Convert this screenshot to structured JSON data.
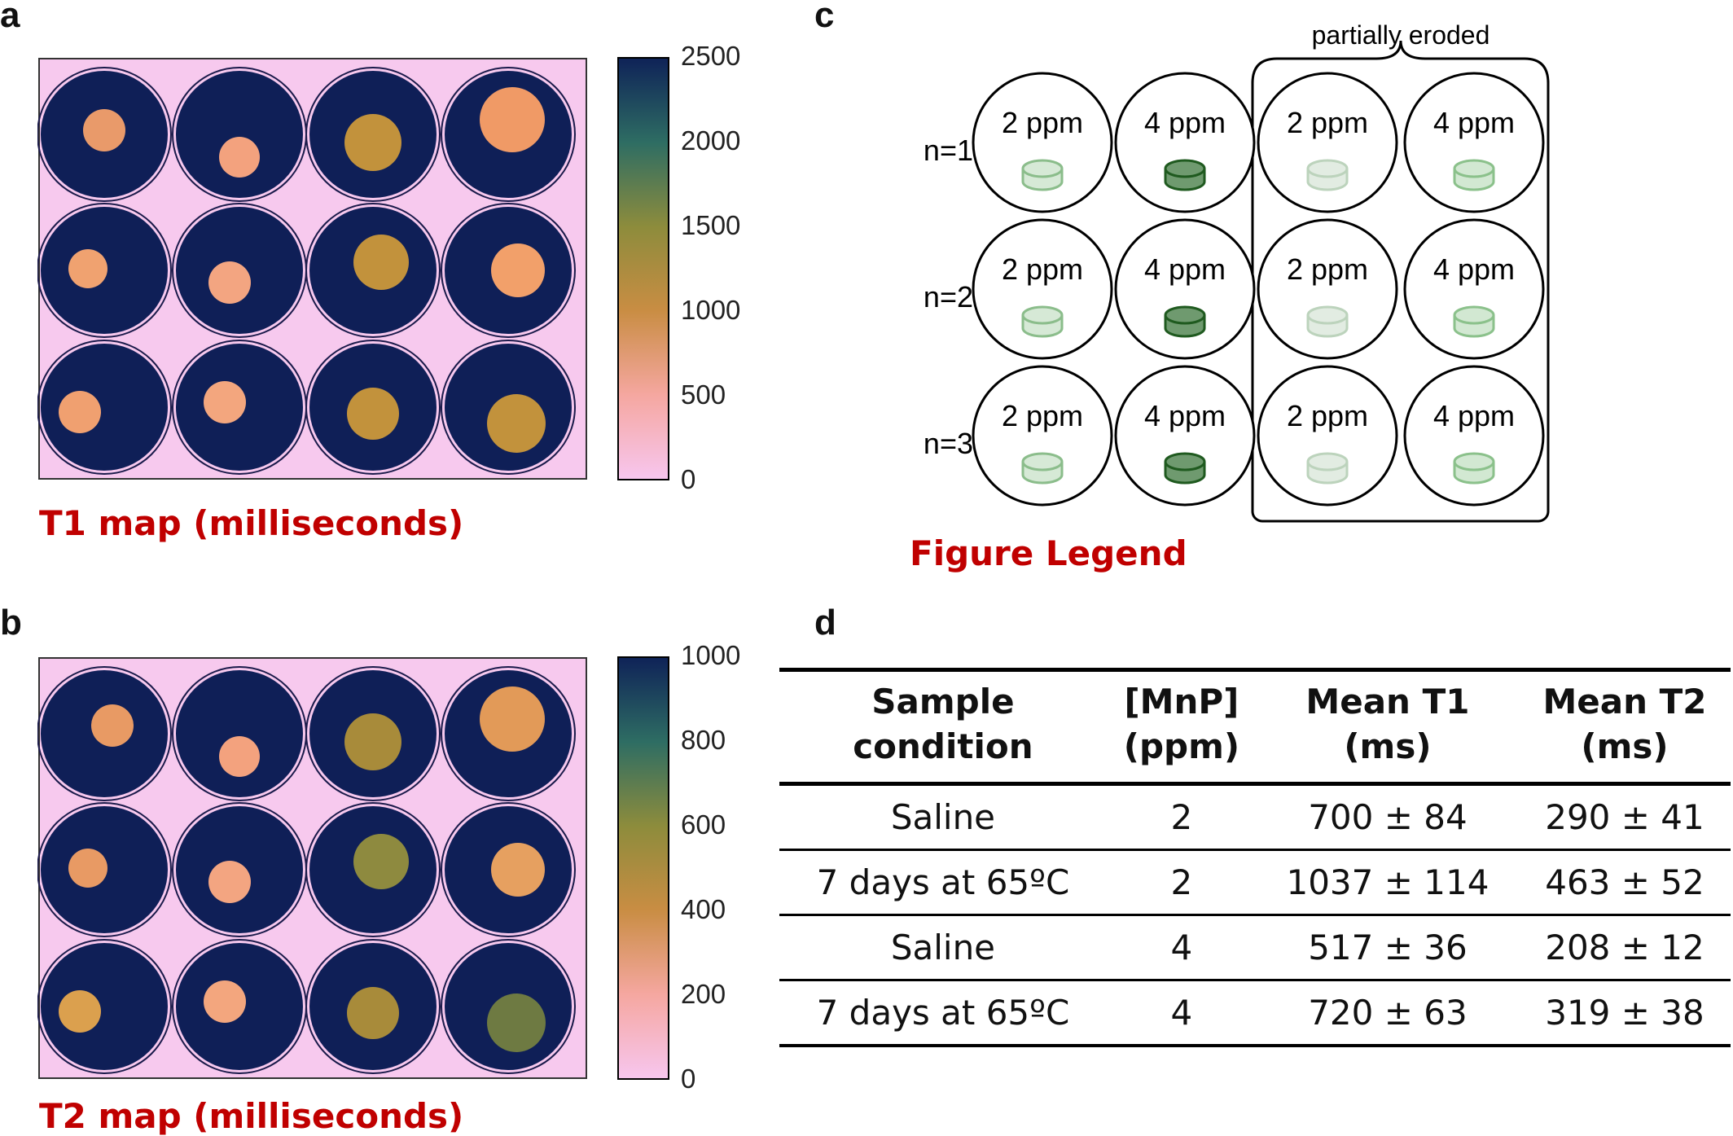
{
  "panels": {
    "a": {
      "letter": "a",
      "caption": "T1 map (milliseconds)",
      "colorbar_ticks": [
        "2500",
        "2000",
        "1500",
        "1000",
        "500",
        "0"
      ],
      "range": [
        0,
        2500
      ]
    },
    "b": {
      "letter": "b",
      "caption": "T2 map (milliseconds)",
      "colorbar_ticks": [
        "1000",
        "800",
        "600",
        "400",
        "200",
        "0"
      ],
      "range": [
        0,
        1000
      ]
    },
    "c": {
      "letter": "c",
      "caption": "Figure Legend",
      "bracket_label": "partially eroded",
      "rows": [
        {
          "label": "n=1",
          "wells": [
            "2 ppm",
            "4 ppm",
            "2 ppm",
            "4 ppm"
          ]
        },
        {
          "label": "n=2",
          "wells": [
            "2 ppm",
            "4 ppm",
            "2 ppm",
            "4 ppm"
          ]
        },
        {
          "label": "n=3",
          "wells": [
            "2 ppm",
            "4 ppm",
            "2 ppm",
            "4 ppm"
          ]
        }
      ],
      "disk_colors": [
        "#d6e9d6",
        "#6f9a6f",
        "#e2ece2",
        "#d2e8d2"
      ],
      "disk_stroke": [
        "#8bbd8b",
        "#1f5a1f",
        "#bcd3bc",
        "#8bc18b"
      ]
    },
    "d": {
      "letter": "d",
      "headers": [
        [
          "Sample",
          "condition"
        ],
        [
          "[MnP]",
          "(ppm)"
        ],
        [
          "Mean T1",
          "(ms)"
        ],
        [
          "Mean T2",
          "(ms)"
        ]
      ],
      "rows": [
        [
          "Saline",
          "2",
          "700 ± 84",
          "290 ± 41"
        ],
        [
          "7 days at 65ºC",
          "2",
          "1037 ± 114",
          "463 ± 52"
        ],
        [
          "Saline",
          "4",
          "517 ± 36",
          "208 ± 12"
        ],
        [
          "7 days at 65ºC",
          "4",
          "720 ± 63",
          "319 ± 38"
        ]
      ]
    }
  },
  "colors": {
    "background_pink": "#f7c9ee",
    "well_navy": "#0f1f57",
    "colormap": [
      "#f7c6ee",
      "#f5a7a0",
      "#c98d43",
      "#8d8c3c",
      "#2e6d63",
      "#0f2358"
    ],
    "caption_red": "#c00000"
  }
}
